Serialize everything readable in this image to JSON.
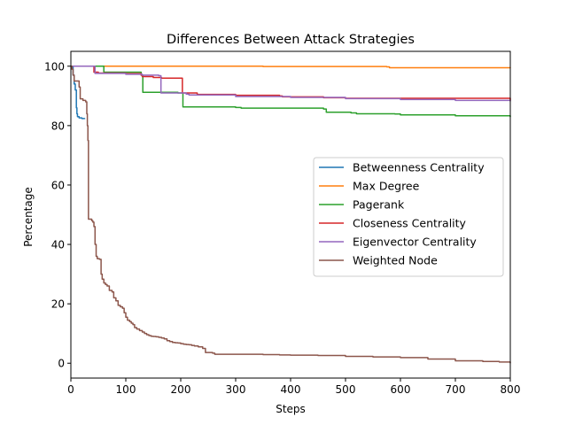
{
  "chart_data": {
    "type": "line",
    "title": "Differences Between Attack Strategies",
    "xlabel": "Steps",
    "ylabel": "Percentage",
    "xlim": [
      0,
      800
    ],
    "ylim": [
      -5,
      105
    ],
    "x_ticks": [
      0,
      100,
      200,
      300,
      400,
      500,
      600,
      700,
      800
    ],
    "x_tick_labels": [
      "0",
      "100",
      "200",
      "300",
      "400",
      "500",
      "600",
      "700",
      "800"
    ],
    "y_ticks": [
      0,
      20,
      40,
      60,
      80,
      100
    ],
    "y_tick_labels": [
      "0",
      "20",
      "40",
      "60",
      "80",
      "100"
    ],
    "grid": false,
    "legend_position": "center-right",
    "series": [
      {
        "name": "Betweenness Centrality",
        "color": "#1f77b4",
        "step": true,
        "points": [
          [
            0,
            100
          ],
          [
            3,
            100
          ],
          [
            4,
            97
          ],
          [
            6,
            94
          ],
          [
            8,
            92
          ],
          [
            10,
            86
          ],
          [
            11,
            84
          ],
          [
            12,
            83
          ],
          [
            15,
            82.6
          ],
          [
            20,
            82.4
          ],
          [
            25,
            82.2
          ]
        ]
      },
      {
        "name": "Max Degree",
        "color": "#ff7f0e",
        "step": true,
        "points": [
          [
            0,
            100
          ],
          [
            300,
            100
          ],
          [
            350,
            99.9
          ],
          [
            575,
            99.8
          ],
          [
            580,
            99.5
          ],
          [
            800,
            99.4
          ]
        ]
      },
      {
        "name": "Pagerank",
        "color": "#2ca02c",
        "step": true,
        "points": [
          [
            0,
            100
          ],
          [
            58,
            100
          ],
          [
            60,
            98
          ],
          [
            128,
            97
          ],
          [
            131,
            91.2
          ],
          [
            195,
            91
          ],
          [
            204,
            86.3
          ],
          [
            300,
            86.1
          ],
          [
            310,
            85.9
          ],
          [
            460,
            85.6
          ],
          [
            465,
            84.5
          ],
          [
            510,
            84.3
          ],
          [
            520,
            84
          ],
          [
            590,
            83.9
          ],
          [
            600,
            83.6
          ],
          [
            700,
            83.3
          ],
          [
            800,
            82.9
          ]
        ]
      },
      {
        "name": "Closeness Centrality",
        "color": "#d62728",
        "step": true,
        "points": [
          [
            0,
            100
          ],
          [
            40,
            100
          ],
          [
            42,
            98
          ],
          [
            50,
            97.7
          ],
          [
            100,
            97.5
          ],
          [
            128,
            97
          ],
          [
            130,
            96.5
          ],
          [
            150,
            96.2
          ],
          [
            165,
            96
          ],
          [
            200,
            96
          ],
          [
            203,
            91
          ],
          [
            230,
            90.5
          ],
          [
            300,
            90.2
          ],
          [
            380,
            90
          ],
          [
            385,
            89.7
          ],
          [
            460,
            89.4
          ],
          [
            500,
            89.2
          ],
          [
            800,
            88.5
          ]
        ]
      },
      {
        "name": "Eigenvector Centrality",
        "color": "#9467bd",
        "step": true,
        "points": [
          [
            0,
            100
          ],
          [
            42,
            100
          ],
          [
            44,
            97.6
          ],
          [
            60,
            97.6
          ],
          [
            100,
            97.3
          ],
          [
            130,
            97
          ],
          [
            160,
            96.8
          ],
          [
            164,
            91
          ],
          [
            175,
            91
          ],
          [
            205,
            91
          ],
          [
            210,
            90.6
          ],
          [
            215,
            90.3
          ],
          [
            300,
            89.8
          ],
          [
            400,
            89.5
          ],
          [
            500,
            89.1
          ],
          [
            600,
            88.8
          ],
          [
            700,
            88.5
          ],
          [
            800,
            88.2
          ]
        ]
      },
      {
        "name": "Weighted Node",
        "color": "#8c564b",
        "step": true,
        "points": [
          [
            0,
            100
          ],
          [
            2,
            99
          ],
          [
            4,
            97
          ],
          [
            6,
            95
          ],
          [
            8,
            95
          ],
          [
            12,
            95
          ],
          [
            15,
            93
          ],
          [
            17,
            89
          ],
          [
            22,
            88.5
          ],
          [
            27,
            88
          ],
          [
            29,
            84
          ],
          [
            30,
            80
          ],
          [
            31,
            75
          ],
          [
            32,
            48.5
          ],
          [
            35,
            48.5
          ],
          [
            38,
            48
          ],
          [
            40,
            47.5
          ],
          [
            42,
            46
          ],
          [
            44,
            40
          ],
          [
            46,
            36
          ],
          [
            48,
            35.2
          ],
          [
            52,
            35
          ],
          [
            55,
            30
          ],
          [
            57,
            28.3
          ],
          [
            60,
            27
          ],
          [
            63,
            26.5
          ],
          [
            66,
            26
          ],
          [
            70,
            24.5
          ],
          [
            75,
            24
          ],
          [
            78,
            22
          ],
          [
            82,
            21
          ],
          [
            86,
            19.5
          ],
          [
            90,
            19
          ],
          [
            94,
            18.5
          ],
          [
            97,
            17
          ],
          [
            100,
            15.5
          ],
          [
            103,
            14.5
          ],
          [
            107,
            14
          ],
          [
            110,
            13.5
          ],
          [
            113,
            13
          ],
          [
            116,
            12
          ],
          [
            120,
            11.5
          ],
          [
            125,
            11
          ],
          [
            130,
            10.5
          ],
          [
            134,
            10
          ],
          [
            138,
            9.6
          ],
          [
            142,
            9.3
          ],
          [
            146,
            9.1
          ],
          [
            150,
            9
          ],
          [
            155,
            8.9
          ],
          [
            160,
            8.7
          ],
          [
            165,
            8.5
          ],
          [
            170,
            8.2
          ],
          [
            175,
            7.6
          ],
          [
            180,
            7.3
          ],
          [
            185,
            7
          ],
          [
            190,
            6.9
          ],
          [
            195,
            6.8
          ],
          [
            200,
            6.6
          ],
          [
            205,
            6.4
          ],
          [
            210,
            6.3
          ],
          [
            215,
            6.2
          ],
          [
            220,
            6
          ],
          [
            225,
            5.8
          ],
          [
            232,
            5.5
          ],
          [
            240,
            5
          ],
          [
            245,
            3.6
          ],
          [
            250,
            3.6
          ],
          [
            258,
            3.4
          ],
          [
            262,
            3.0
          ],
          [
            300,
            3.0
          ],
          [
            350,
            2.9
          ],
          [
            360,
            2.9
          ],
          [
            380,
            2.8
          ],
          [
            400,
            2.7
          ],
          [
            450,
            2.6
          ],
          [
            500,
            2.3
          ],
          [
            550,
            2.1
          ],
          [
            600,
            1.9
          ],
          [
            650,
            1.4
          ],
          [
            700,
            0.8
          ],
          [
            750,
            0.6
          ],
          [
            780,
            0.4
          ],
          [
            800,
            0.0
          ]
        ]
      }
    ]
  }
}
